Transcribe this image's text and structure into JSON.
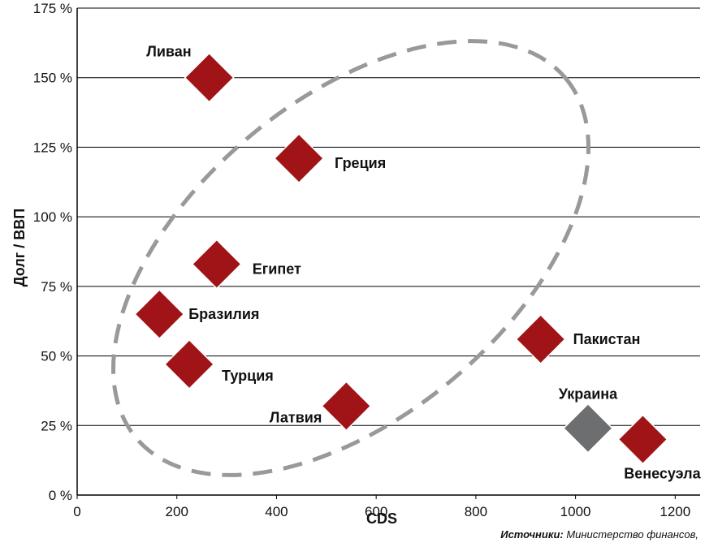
{
  "chart_data": {
    "type": "scatter",
    "xlabel": "CDS",
    "ylabel": "Долг / ВВП",
    "xlim": [
      0,
      1250
    ],
    "ylim": [
      0,
      175
    ],
    "xticks": [
      0,
      200,
      400,
      600,
      800,
      1000,
      1200
    ],
    "xtick_labels": [
      "0",
      "200",
      "400",
      "600",
      "800",
      "1000",
      "1200"
    ],
    "yticks": [
      0,
      25,
      50,
      75,
      100,
      125,
      150,
      175
    ],
    "ytick_labels": [
      "0 %",
      "25 %",
      "50 %",
      "75 %",
      "100 %",
      "125 %",
      "150 %",
      "175 %"
    ],
    "grid": "horizontal",
    "points": [
      {
        "label": "Ливан",
        "x": 265,
        "y": 150,
        "color": "#a01418"
      },
      {
        "label": "Греция",
        "x": 445,
        "y": 121,
        "color": "#a01418"
      },
      {
        "label": "Египет",
        "x": 280,
        "y": 83,
        "color": "#a01418"
      },
      {
        "label": "Бразилия",
        "x": 165,
        "y": 65,
        "color": "#a01418"
      },
      {
        "label": "Турция",
        "x": 225,
        "y": 47,
        "color": "#a01418"
      },
      {
        "label": "Латвия",
        "x": 540,
        "y": 32,
        "color": "#a01418"
      },
      {
        "label": "Пакистан",
        "x": 930,
        "y": 56,
        "color": "#a01418"
      },
      {
        "label": "Украина",
        "x": 1025,
        "y": 24,
        "color": "#6d6e70"
      },
      {
        "label": "Венесуэла",
        "x": 1135,
        "y": 20,
        "color": "#a01418"
      }
    ],
    "annotations": [
      "dashed-ellipse"
    ]
  },
  "source": {
    "prefix": "Источники:",
    "text": " Министерство финансов,"
  },
  "colors": {
    "marker": "#a01418",
    "marker_highlight": "#6d6e70",
    "ellipse": "#999999",
    "grid": "#000000"
  }
}
